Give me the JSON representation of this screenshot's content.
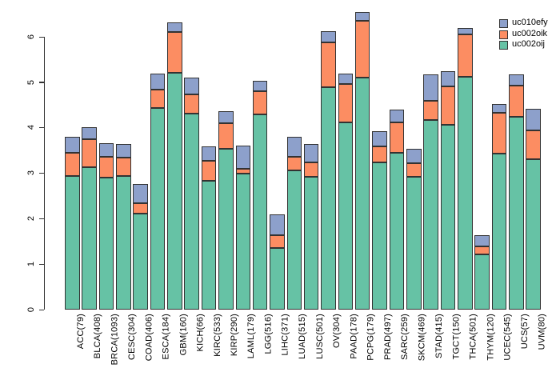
{
  "chart_data": {
    "type": "bar",
    "stacked": true,
    "title": "",
    "xlabel": "",
    "ylabel": "",
    "ylim": [
      0,
      6.6
    ],
    "ytick_labels": [
      "0",
      "1",
      "2",
      "3",
      "4",
      "5",
      "6"
    ],
    "grid": false,
    "legend_position": "top-right",
    "categories": [
      "ACC(79)",
      "BLCA(408)",
      "BRCA(1093)",
      "CESC(304)",
      "COAD(406)",
      "ESCA(184)",
      "GBM(160)",
      "KICH(66)",
      "KIRC(533)",
      "KIRP(290)",
      "LAML(179)",
      "LGG(516)",
      "LIHC(371)",
      "LUAD(515)",
      "LUSC(501)",
      "OV(304)",
      "PAAD(178)",
      "PCPG(179)",
      "PRAD(497)",
      "SARC(259)",
      "SKCM(469)",
      "STAD(415)",
      "TGCT(150)",
      "THCA(501)",
      "THYM(120)",
      "UCEC(545)",
      "UCS(57)",
      "UVM(80)"
    ],
    "series": [
      {
        "name": "uc002oij",
        "color": "#66C2A5",
        "values": [
          2.94,
          3.14,
          2.9,
          2.94,
          2.12,
          4.43,
          5.21,
          4.31,
          2.84,
          3.54,
          3.0,
          4.3,
          1.37,
          3.07,
          2.92,
          4.89,
          4.12,
          5.11,
          3.24,
          3.45,
          2.92,
          4.18,
          4.06,
          5.12,
          1.23,
          3.44,
          4.24,
          3.32
        ]
      },
      {
        "name": "uc002oik",
        "color": "#FC8D62",
        "values": [
          0.51,
          0.62,
          0.47,
          0.4,
          0.22,
          0.41,
          0.9,
          0.43,
          0.43,
          0.56,
          0.1,
          0.5,
          0.28,
          0.3,
          0.32,
          0.99,
          0.85,
          1.24,
          0.36,
          0.67,
          0.31,
          0.41,
          0.85,
          0.93,
          0.17,
          0.89,
          0.69,
          0.63
        ]
      },
      {
        "name": "uc010efy",
        "color": "#8DA0CB",
        "values": [
          0.35,
          0.25,
          0.3,
          0.3,
          0.42,
          0.36,
          0.2,
          0.36,
          0.33,
          0.27,
          0.52,
          0.24,
          0.45,
          0.43,
          0.41,
          0.25,
          0.23,
          0.19,
          0.32,
          0.28,
          0.31,
          0.59,
          0.34,
          0.14,
          0.25,
          0.2,
          0.25,
          0.47
        ]
      }
    ],
    "legend_entries": [
      {
        "label": "uc010efy",
        "color": "#8DA0CB"
      },
      {
        "label": "uc002oik",
        "color": "#FC8D62"
      },
      {
        "label": "uc002oij",
        "color": "#66C2A5"
      }
    ],
    "axis_color": "#333333",
    "bar_border_color": "#333333"
  }
}
